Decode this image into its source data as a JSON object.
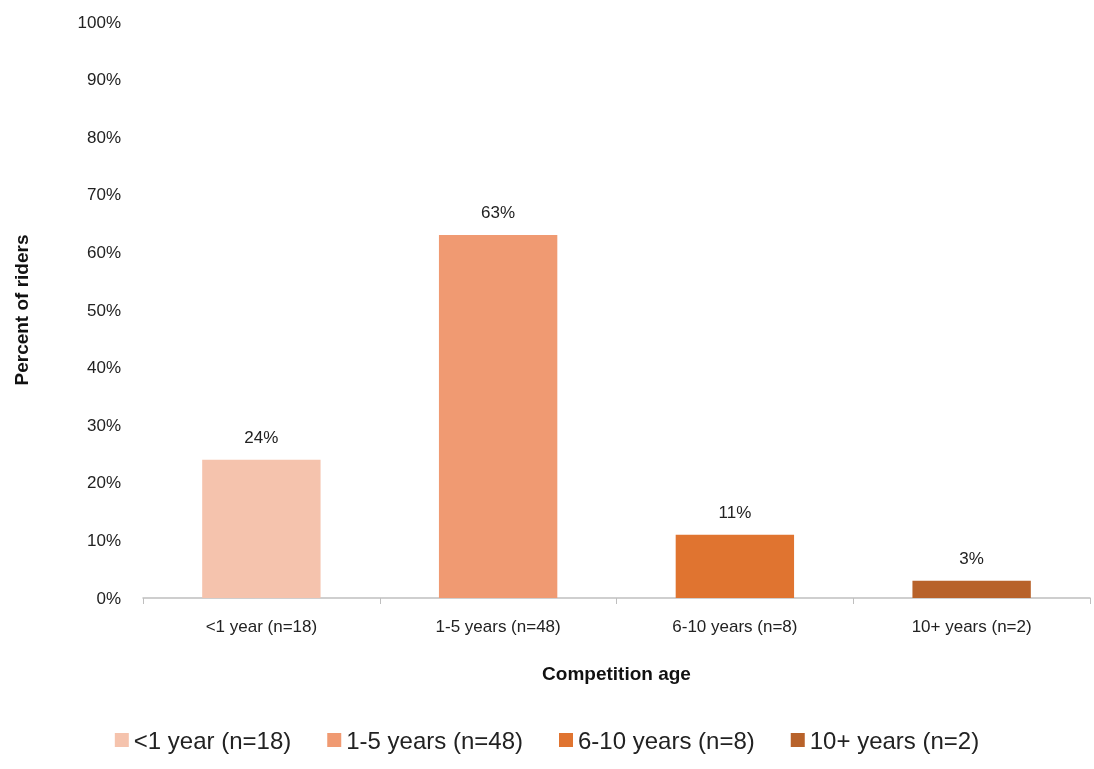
{
  "chart_data": {
    "type": "bar",
    "xlabel": "Competition age",
    "ylabel": "Percent of riders",
    "categories": [
      "<1 year (n=18)",
      "1-5 years (n=48)",
      "6-10 years (n=8)",
      "10+ years (n=2)"
    ],
    "series": [
      {
        "name": "<1 year (n=18)",
        "color": "#f5c3ad",
        "values": [
          24,
          null,
          null,
          null
        ],
        "value_labels": [
          "24%",
          null,
          null,
          null
        ]
      },
      {
        "name": "1-5 years (n=48)",
        "color": "#f09a72",
        "values": [
          null,
          63,
          null,
          null
        ],
        "value_labels": [
          null,
          "63%",
          null,
          null
        ]
      },
      {
        "name": "6-10 years (n=8)",
        "color": "#e07430",
        "values": [
          null,
          null,
          11,
          null
        ],
        "value_labels": [
          null,
          null,
          "11%",
          null
        ]
      },
      {
        "name": "10+ years (n=2)",
        "color": "#b8622a",
        "values": [
          null,
          null,
          null,
          3
        ],
        "value_labels": [
          null,
          null,
          null,
          "3%"
        ]
      }
    ],
    "stacked": true,
    "ylim": [
      0,
      100
    ],
    "yticks": [
      {
        "value": 0,
        "label": "0%"
      },
      {
        "value": 10,
        "label": "10%"
      },
      {
        "value": 20,
        "label": "20%"
      },
      {
        "value": 30,
        "label": "30%"
      },
      {
        "value": 40,
        "label": "40%"
      },
      {
        "value": 50,
        "label": "50%"
      },
      {
        "value": 60,
        "label": "60%"
      },
      {
        "value": 70,
        "label": "70%"
      },
      {
        "value": 80,
        "label": "80%"
      },
      {
        "value": 90,
        "label": "90%"
      },
      {
        "value": 100,
        "label": "100%"
      }
    ],
    "grid": false,
    "legend": "bottom"
  }
}
